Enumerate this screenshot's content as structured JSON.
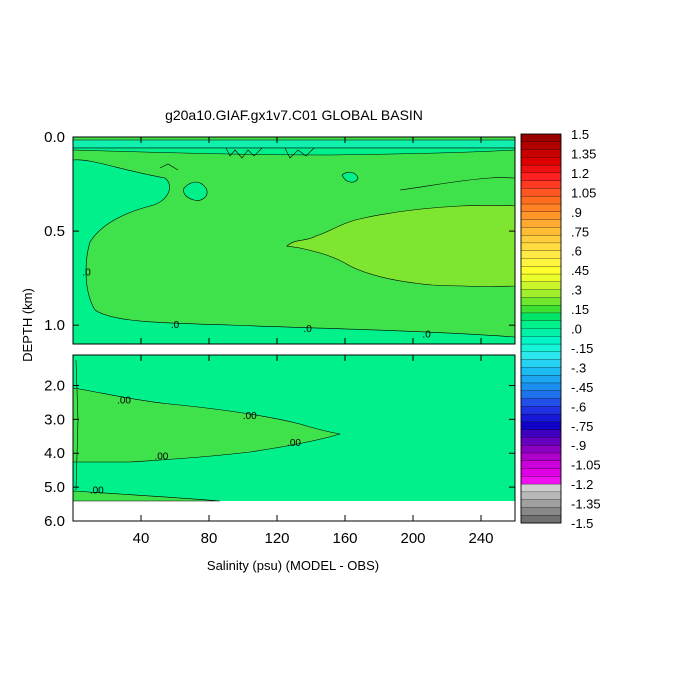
{
  "chart_data": {
    "type": "contour",
    "title": "g20a10.GIAF.gx1v7.C01 GLOBAL BASIN",
    "xlabel": "Salinity (psu) (MODEL - OBS)",
    "ylabel": "DEPTH (km)",
    "xlim": [
      0,
      260
    ],
    "x_ticks": [
      "40",
      "80",
      "120",
      "160",
      "200",
      "240"
    ],
    "x_tick_values": [
      40,
      80,
      120,
      160,
      200,
      240
    ],
    "panels": [
      {
        "name": "upper",
        "ylim": [
          0.0,
          1.1
        ],
        "y_ticks": [
          "0.0",
          "0.5",
          "1.0"
        ],
        "y_tick_values": [
          0.0,
          0.5,
          1.0
        ],
        "contour_labels": [
          {
            "text": ".0",
            "x": 8,
            "y": 0.72
          },
          {
            "text": ".0",
            "x": 60,
            "y": 1.0
          },
          {
            "text": ".0",
            "x": 138,
            "y": 1.02
          },
          {
            "text": ".0",
            "x": 208,
            "y": 1.05
          }
        ]
      },
      {
        "name": "lower",
        "ylim": [
          1.1,
          6.0
        ],
        "y_ticks": [
          "2.0",
          "3.0",
          "4.0",
          "5.0",
          "6.0"
        ],
        "y_tick_values": [
          2.0,
          3.0,
          4.0,
          5.0,
          6.0
        ],
        "data_bottom": 5.35,
        "contour_labels": [
          {
            "text": ".00",
            "x": 30,
            "y": 2.45
          },
          {
            "text": ".00",
            "x": 104,
            "y": 2.9
          },
          {
            "text": ".00",
            "x": 130,
            "y": 3.7
          },
          {
            "text": ".00",
            "x": 52,
            "y": 4.1
          },
          {
            "text": ".00",
            "x": 14,
            "y": 5.1
          }
        ]
      }
    ],
    "colorbar": {
      "labels": [
        "1.5",
        "1.35",
        "1.2",
        "1.05",
        ".9",
        ".75",
        ".6",
        ".45",
        ".3",
        ".15",
        ".0",
        "-.15",
        "-.3",
        "-.45",
        "-.6",
        "-.75",
        "-.9",
        "-1.05",
        "-1.2",
        "-1.35",
        "-1.5"
      ],
      "colors": [
        "#9a0000",
        "#b00000",
        "#c80000",
        "#dc0000",
        "#ee1010",
        "#ff2020",
        "#ff3a22",
        "#ff5522",
        "#ff6c20",
        "#ff8224",
        "#ff962a",
        "#ffaa30",
        "#ffbc35",
        "#ffcc3c",
        "#ffdb40",
        "#ffea45",
        "#fff43e",
        "#ffff2e",
        "#eaff2a",
        "#c8f62a",
        "#a0ee2c",
        "#70e62e",
        "#3ee032",
        "#00e468",
        "#00f08c",
        "#00f2a6",
        "#00f6c4",
        "#16f5da",
        "#2ee6ee",
        "#26d2f2",
        "#1cbcf2",
        "#1aa6f0",
        "#1c8eee",
        "#1e72ec",
        "#2050e8",
        "#2032e2",
        "#1818d8",
        "#1000c8",
        "#4000c0",
        "#6800c0",
        "#8c00c4",
        "#ae00cc",
        "#cc00d8",
        "#e000e6",
        "#ee10ee",
        "#d0d0d0",
        "#b8b8b8",
        "#a0a0a0",
        "#888888",
        "#707070"
      ]
    },
    "fill_colors": {
      "positive_low": "#3fe24a",
      "positive_mid": "#5be63c",
      "positive_high": "#7ee630",
      "neutral": "#00f08c",
      "negative_low": "#12f0b0"
    }
  }
}
